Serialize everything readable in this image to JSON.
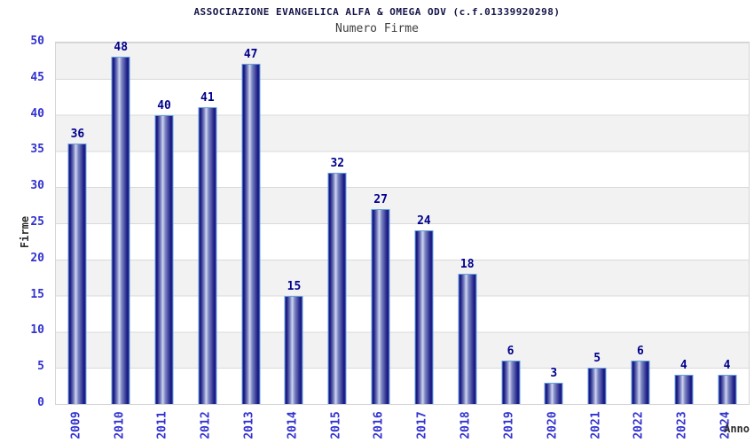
{
  "header": {
    "title": "ASSOCIAZIONE EVANGELICA ALFA & OMEGA ODV (c.f.01339920298)",
    "subtitle": "Numero Firme"
  },
  "chart_data": {
    "type": "bar",
    "title": "ASSOCIAZIONE EVANGELICA ALFA & OMEGA ODV (c.f.01339920298)",
    "subtitle": "Numero Firme",
    "xlabel": "Anno",
    "ylabel": "Firme",
    "categories": [
      "2009",
      "2010",
      "2011",
      "2012",
      "2013",
      "2014",
      "2015",
      "2016",
      "2017",
      "2018",
      "2019",
      "2020",
      "2021",
      "2022",
      "2023",
      "2024"
    ],
    "values": [
      36,
      48,
      40,
      41,
      47,
      15,
      32,
      27,
      24,
      18,
      6,
      3,
      5,
      6,
      4,
      4
    ],
    "ylim": [
      0,
      50
    ],
    "yticks": [
      0,
      5,
      10,
      15,
      20,
      25,
      30,
      35,
      40,
      45,
      50
    ],
    "grid": "horizontal alternating bands",
    "legend": "none",
    "colors": {
      "bar_dark": "#1a1a84",
      "bar_light": "#d2d6f0",
      "bar_border": "#64a0e0",
      "band_gray": "#f2f2f2",
      "band_white": "#ffffff",
      "gridline": "#d9d9d9",
      "tick_text": "#3232d0",
      "value_text": "#00008c",
      "title_text": "#14144a"
    }
  }
}
